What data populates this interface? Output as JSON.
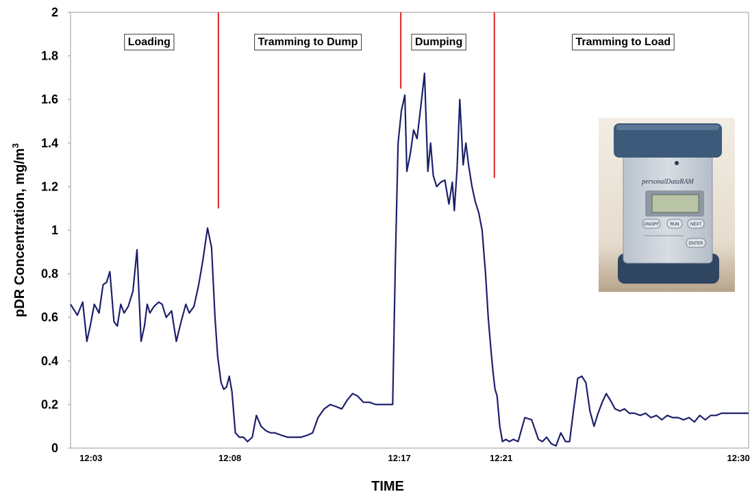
{
  "chart_data": {
    "type": "line",
    "xlabel": "TIME",
    "ylabel": "pDR Concentration, mg/m",
    "ylabel_superscript": "3",
    "ylim": [
      0,
      2
    ],
    "yticks": [
      "0",
      "0.2",
      "0.4",
      "0.6",
      "0.8",
      "1",
      "1.2",
      "1.4",
      "1.6",
      "1.8",
      "2"
    ],
    "ytick_values": [
      0,
      0.2,
      0.4,
      0.6,
      0.8,
      1.0,
      1.2,
      1.4,
      1.6,
      1.8,
      2.0
    ],
    "xlim": [
      0,
      100
    ],
    "xticks": [
      {
        "label": "12:03",
        "pos": 3
      },
      {
        "label": "12:08",
        "pos": 23.5
      },
      {
        "label": "12:17",
        "pos": 48.5
      },
      {
        "label": "12:21",
        "pos": 63.5
      },
      {
        "label": "12:30",
        "pos": 98.5
      }
    ],
    "phases": [
      {
        "label": "Loading",
        "center": 11.6
      },
      {
        "label": "Tramming to Dump",
        "center": 35
      },
      {
        "label": "Dumping",
        "center": 54.3
      },
      {
        "label": "Tramming to Load",
        "center": 81.5
      }
    ],
    "dividers": [
      {
        "x": 21.8,
        "y_from": 1.1,
        "y_to": 2.0
      },
      {
        "x": 48.7,
        "y_from": 1.65,
        "y_to": 2.0
      },
      {
        "x": 62.5,
        "y_from": 1.24,
        "y_to": 2.0
      }
    ],
    "grid": false,
    "line_color": "#1c1f6b",
    "divider_color": "#e02020",
    "series": [
      {
        "x": [
          0,
          1,
          1.8,
          2.4,
          2.9,
          3.5,
          4.2,
          4.8,
          5.3,
          5.8,
          6.4,
          6.9,
          7.4,
          7.9,
          8.5,
          9.2,
          9.8,
          10.4,
          10.9,
          11.3,
          11.7,
          12.3,
          13,
          13.5,
          14.1,
          14.9,
          15.6,
          16.3,
          17,
          17.5,
          18.2,
          18.9,
          19.5,
          20.2,
          20.8,
          21.3,
          21.7,
          22.2,
          22.6,
          23,
          23.4,
          23.8,
          24.3,
          24.9,
          25.5,
          26.1,
          26.8,
          27.4,
          28.1,
          28.8,
          29.5,
          30.1,
          31,
          32,
          33,
          34,
          35,
          35.7,
          36.5,
          37.4,
          38.3,
          39.2,
          40,
          40.8,
          41.6,
          42.3,
          43.2,
          44.1,
          45,
          46,
          47,
          47.5,
          47.9,
          48.3,
          48.8,
          49.3,
          49.6,
          50.1,
          50.6,
          51.1,
          51.7,
          52.2,
          52.7,
          53.1,
          53.5,
          54,
          54.6,
          55.2,
          55.8,
          56.3,
          56.6,
          57,
          57.4,
          57.9,
          58.3,
          58.7,
          59.2,
          59.7,
          60.2,
          60.7,
          61.2,
          61.6,
          62,
          62.3,
          62.6,
          62.9,
          63.3,
          63.7,
          64.2,
          64.7,
          65.3,
          66,
          67,
          68,
          69,
          69.6,
          70.2,
          70.9,
          71.6,
          72.3,
          73,
          73.6,
          74.2,
          74.8,
          75.4,
          76,
          76.6,
          77.2,
          77.8,
          78.4,
          79,
          79.6,
          80.3,
          81,
          81.7,
          82.4,
          83.2,
          84,
          84.8,
          85.6,
          86.4,
          87.2,
          88,
          88.8,
          89.6,
          90.4,
          91.2,
          92,
          92.8,
          93.6,
          94.4,
          95.2,
          96,
          96.8,
          97.6,
          98.4,
          99.2,
          100
        ],
        "y": [
          0.66,
          0.61,
          0.67,
          0.49,
          0.56,
          0.66,
          0.62,
          0.75,
          0.76,
          0.81,
          0.58,
          0.56,
          0.66,
          0.62,
          0.65,
          0.72,
          0.91,
          0.49,
          0.56,
          0.66,
          0.62,
          0.65,
          0.67,
          0.66,
          0.6,
          0.63,
          0.49,
          0.58,
          0.66,
          0.62,
          0.65,
          0.75,
          0.86,
          1.01,
          0.92,
          0.6,
          0.42,
          0.3,
          0.27,
          0.28,
          0.33,
          0.26,
          0.07,
          0.05,
          0.05,
          0.03,
          0.05,
          0.15,
          0.1,
          0.08,
          0.07,
          0.07,
          0.06,
          0.05,
          0.05,
          0.05,
          0.06,
          0.07,
          0.14,
          0.18,
          0.2,
          0.19,
          0.18,
          0.22,
          0.25,
          0.24,
          0.21,
          0.21,
          0.2,
          0.2,
          0.2,
          0.2,
          0.85,
          1.4,
          1.55,
          1.62,
          1.27,
          1.35,
          1.46,
          1.42,
          1.58,
          1.72,
          1.27,
          1.4,
          1.25,
          1.2,
          1.22,
          1.23,
          1.12,
          1.22,
          1.09,
          1.28,
          1.6,
          1.3,
          1.4,
          1.3,
          1.2,
          1.13,
          1.08,
          1.0,
          0.8,
          0.6,
          0.45,
          0.35,
          0.27,
          0.24,
          0.1,
          0.03,
          0.04,
          0.03,
          0.04,
          0.03,
          0.14,
          0.13,
          0.04,
          0.03,
          0.05,
          0.02,
          0.01,
          0.07,
          0.03,
          0.03,
          0.18,
          0.32,
          0.33,
          0.3,
          0.17,
          0.1,
          0.16,
          0.21,
          0.25,
          0.22,
          0.18,
          0.17,
          0.18,
          0.16,
          0.16,
          0.15,
          0.16,
          0.14,
          0.15,
          0.13,
          0.15,
          0.14,
          0.14,
          0.13,
          0.14,
          0.12,
          0.15,
          0.13,
          0.15,
          0.15,
          0.16,
          0.16,
          0.16,
          0.16,
          0.16,
          0.16
        ]
      }
    ]
  },
  "device_photo": {
    "brand_text": "personalDataRAM",
    "buttons": [
      "ON/OFF",
      "RUN",
      "NEXT",
      "ENTER"
    ]
  }
}
